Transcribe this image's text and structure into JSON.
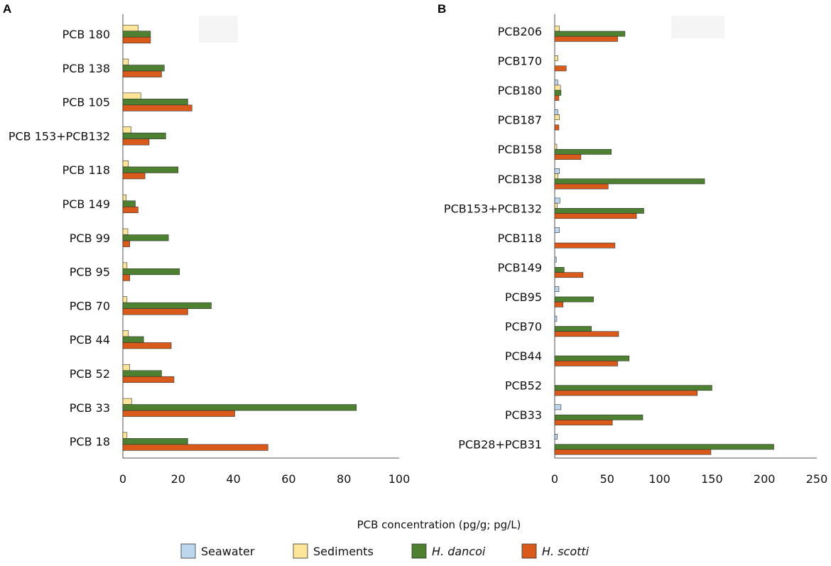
{
  "chart_data": [
    {
      "panel": "A",
      "type": "bar",
      "orientation": "horizontal",
      "categories": [
        "PCB 180",
        "PCB 138",
        "PCB 105",
        "PCB 153+PCB132",
        "PCB 118",
        "PCB 149",
        "PCB 99",
        "PCB 95",
        "PCB 70",
        "PCB 44",
        "PCB 52",
        "PCB 33",
        "PCB 18"
      ],
      "series": [
        {
          "name": "Sediments",
          "color": "#fde69a",
          "values": [
            5.5,
            2,
            6.5,
            3,
            2,
            1.2,
            1.8,
            1.5,
            1.5,
            2,
            2.5,
            3.2,
            1.5
          ]
        },
        {
          "name": "H. dancoi",
          "color": "#4d8030",
          "values": [
            10,
            15,
            23.5,
            15.5,
            20,
            4.5,
            16.5,
            20.5,
            32,
            7.5,
            14,
            84.5,
            23.5
          ]
        },
        {
          "name": "H. scotti",
          "color": "#d95a1a",
          "values": [
            10,
            14,
            25,
            9.5,
            8,
            5.5,
            2.5,
            2.5,
            23.5,
            17.5,
            18.5,
            40.5,
            52.5
          ]
        }
      ],
      "xlim": [
        0,
        100
      ],
      "xticks": [
        "0",
        "20",
        "40",
        "60",
        "80",
        "100"
      ]
    },
    {
      "panel": "B",
      "type": "bar",
      "orientation": "horizontal",
      "categories": [
        "PCB206",
        "PCB170",
        "PCB180",
        "PCB187",
        "PCB158",
        "PCB138",
        "PCB153+PCB132",
        "PCB118",
        "PCB149",
        "PCB95",
        "PCB70",
        "PCB44",
        "PCB52",
        "PCB33",
        "PCB28+PCB31"
      ],
      "series": [
        {
          "name": "Seawater",
          "color": "#bdd7ee",
          "values": [
            0,
            0,
            3,
            3,
            0,
            4.5,
            5,
            4.5,
            1.5,
            4,
            2,
            0,
            0,
            6,
            2.5
          ]
        },
        {
          "name": "Sediments",
          "color": "#fde69a",
          "values": [
            4.5,
            3,
            5.5,
            4.5,
            2,
            3,
            2.5,
            0,
            0,
            0,
            0,
            0,
            0,
            0,
            0
          ]
        },
        {
          "name": "H. dancoi",
          "color": "#4d8030",
          "values": [
            67,
            0,
            6,
            0,
            54,
            143,
            85,
            0,
            9,
            37,
            35,
            71,
            150,
            84,
            209
          ]
        },
        {
          "name": "H. scotti",
          "color": "#d95a1a",
          "values": [
            60,
            11,
            4,
            4,
            25,
            51,
            78,
            57.5,
            27,
            8,
            61,
            60,
            136,
            55,
            149
          ]
        }
      ],
      "xlim": [
        0,
        250
      ],
      "xticks": [
        "0",
        "50",
        "100",
        "150",
        "200",
        "250"
      ]
    }
  ],
  "labels": {
    "panel_a": "A",
    "panel_b": "B",
    "xlabel": "PCB concentration (pg/g; pg/L)"
  },
  "legend": [
    {
      "label": "Seawater",
      "color": "#bdd7ee",
      "italic": false
    },
    {
      "label": "Sediments",
      "color": "#fde69a",
      "italic": false
    },
    {
      "label": "H. dancoi",
      "color": "#4d8030",
      "italic": true
    },
    {
      "label": "H. scotti",
      "color": "#d95a1a",
      "italic": true
    }
  ]
}
